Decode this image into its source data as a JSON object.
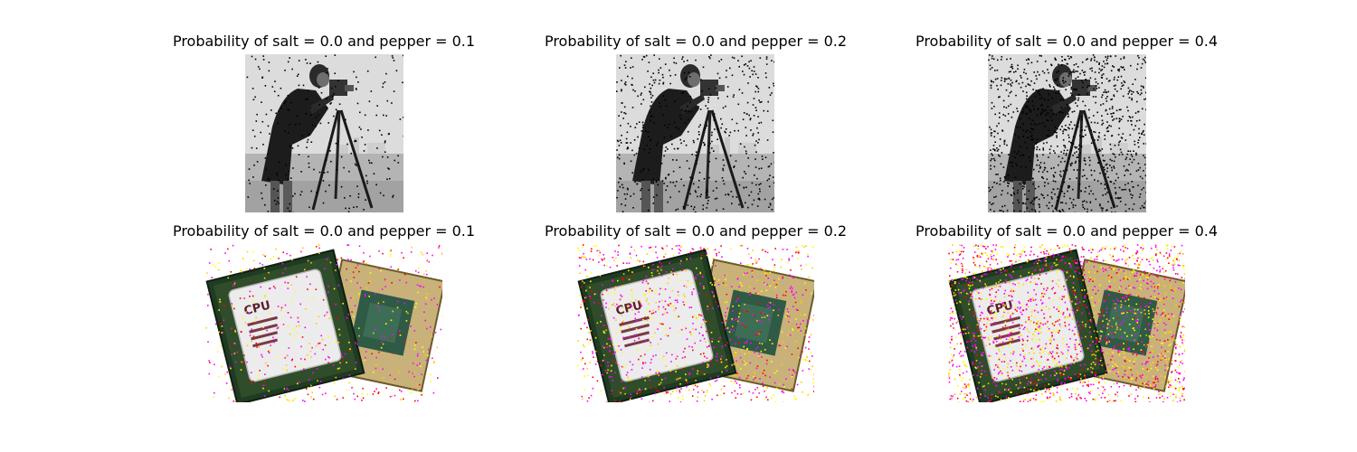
{
  "figure": {
    "row1": [
      {
        "title": "Probability of salt = 0.0 and pepper = 0.1",
        "image": "cameraman",
        "noise_level": 0.1
      },
      {
        "title": "Probability of salt = 0.0 and pepper = 0.2",
        "image": "cameraman",
        "noise_level": 0.2
      },
      {
        "title": "Probability of salt = 0.0 and pepper = 0.4",
        "image": "cameraman",
        "noise_level": 0.4
      }
    ],
    "row2": [
      {
        "title": "Probability of salt = 0.0 and pepper = 0.1",
        "image": "cpu-chips",
        "noise_level": 0.1
      },
      {
        "title": "Probability of salt = 0.0 and pepper = 0.2",
        "image": "cpu-chips",
        "noise_level": 0.2
      },
      {
        "title": "Probability of salt = 0.0 and pepper = 0.4",
        "image": "cpu-chips",
        "noise_level": 0.4
      }
    ]
  },
  "chip_label": "CPU"
}
